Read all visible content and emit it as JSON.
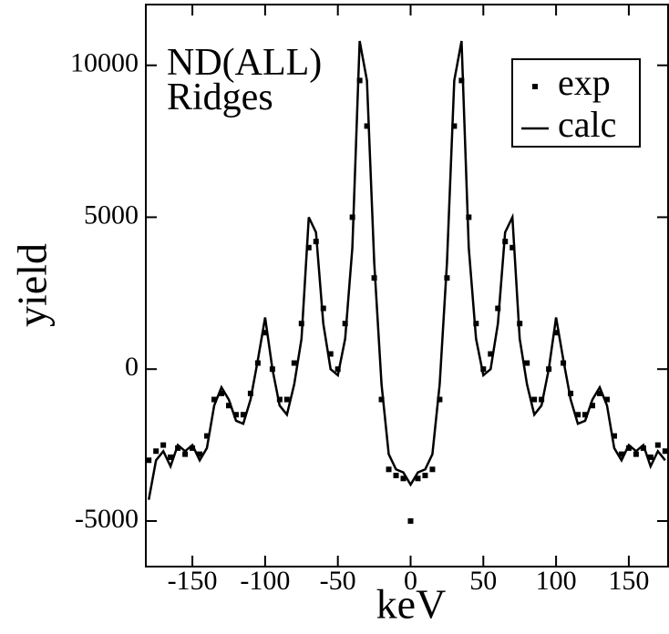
{
  "chart_data": {
    "type": "line",
    "annotations": [
      "ND(ALL)",
      "Ridges"
    ],
    "x_label": "keV",
    "y_label": "yield",
    "x": [
      -180,
      -175,
      -170,
      -165,
      -160,
      -155,
      -150,
      -145,
      -140,
      -135,
      -130,
      -125,
      -120,
      -115,
      -110,
      -105,
      -100,
      -95,
      -90,
      -85,
      -80,
      -75,
      -70,
      -65,
      -60,
      -55,
      -50,
      -45,
      -40,
      -35,
      -30,
      -25,
      -20,
      -15,
      -10,
      -5,
      0,
      5,
      10,
      15,
      20,
      25,
      30,
      35,
      40,
      45,
      50,
      55,
      60,
      65,
      70,
      75,
      80,
      85,
      90,
      95,
      100,
      105,
      110,
      115,
      120,
      125,
      130,
      135,
      140,
      145,
      150,
      155,
      160,
      165,
      170,
      175
    ],
    "series": [
      {
        "name": "exp",
        "color": "#000000",
        "style": "points",
        "values": [
          -3000,
          -2700,
          -2500,
          -2900,
          -2600,
          -2800,
          -2600,
          -2800,
          -2200,
          -1000,
          -800,
          -1200,
          -1500,
          -1500,
          -800,
          200,
          1200,
          0,
          -1000,
          -1000,
          200,
          1500,
          4000,
          4200,
          2000,
          500,
          0,
          1500,
          5000,
          9500,
          8000,
          3000,
          -1000,
          -3300,
          -3500,
          -3600,
          -5000,
          -3600,
          -3500,
          -3300,
          -1000,
          3000,
          8000,
          9500,
          5000,
          1500,
          0,
          500,
          2000,
          4200,
          4000,
          1500,
          200,
          -1000,
          -1000,
          0,
          1200,
          200,
          -800,
          -1500,
          -1500,
          -1200,
          -800,
          -1000,
          -2200,
          -2800,
          -2600,
          -2800,
          -2600,
          -2900,
          -2500,
          -2700
        ]
      },
      {
        "name": "calc",
        "color": "#000000",
        "style": "line",
        "values": [
          -4300,
          -3000,
          -2700,
          -3200,
          -2500,
          -2700,
          -2500,
          -3000,
          -2600,
          -1200,
          -600,
          -1000,
          -1700,
          -1800,
          -1000,
          300,
          1700,
          0,
          -1200,
          -1500,
          -500,
          1000,
          5000,
          4500,
          1500,
          0,
          -200,
          1000,
          4000,
          10800,
          9500,
          3500,
          -500,
          -2800,
          -3300,
          -3400,
          -3800,
          -3400,
          -3300,
          -2800,
          -500,
          3500,
          9500,
          10800,
          4000,
          1000,
          -200,
          0,
          1500,
          4500,
          5000,
          1000,
          -500,
          -1500,
          -1200,
          0,
          1700,
          300,
          -1000,
          -1800,
          -1700,
          -1000,
          -600,
          -1200,
          -2600,
          -3000,
          -2500,
          -2700,
          -2500,
          -3200,
          -2700,
          -3000
        ]
      }
    ],
    "xlim": [
      -182,
      177
    ],
    "ylim": [
      -6500,
      12000
    ],
    "xticks": [
      -150,
      -100,
      -50,
      0,
      50,
      100,
      150
    ],
    "yticks": [
      -5000,
      0,
      5000,
      10000
    ],
    "legend": "upper right",
    "grid": false
  }
}
